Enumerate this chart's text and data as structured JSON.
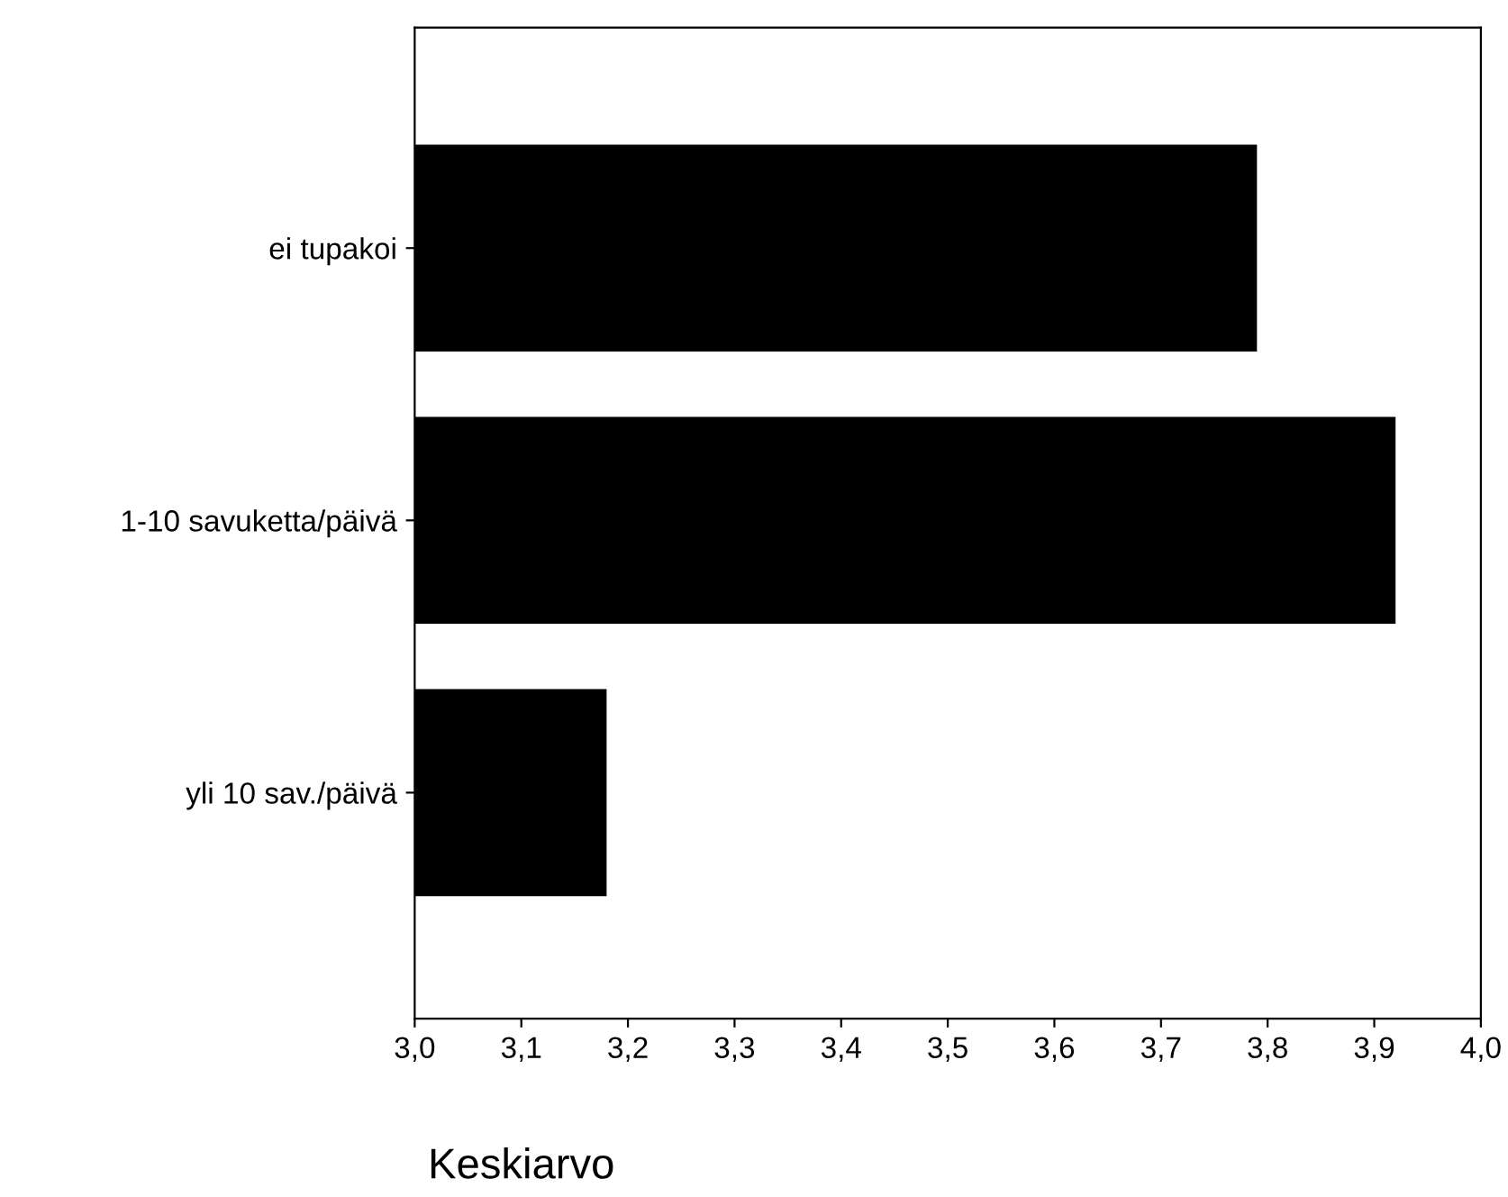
{
  "chart_data": {
    "type": "bar",
    "orientation": "horizontal",
    "xlabel": "Keskiarvo",
    "categories": [
      "ei tupakoi",
      "1-10 savuketta/päivä",
      "yli 10 sav./päivä"
    ],
    "values": [
      3.79,
      3.92,
      3.18
    ],
    "color": "#000000",
    "xlim": [
      3.0,
      4.0
    ],
    "xticks": [
      {
        "value": 3.0,
        "label": "3,0"
      },
      {
        "value": 3.1,
        "label": "3,1"
      },
      {
        "value": 3.2,
        "label": "3,2"
      },
      {
        "value": 3.3,
        "label": "3,3"
      },
      {
        "value": 3.4,
        "label": "3,4"
      },
      {
        "value": 3.5,
        "label": "3,5"
      },
      {
        "value": 3.6,
        "label": "3,6"
      },
      {
        "value": 3.7,
        "label": "3,7"
      },
      {
        "value": 3.8,
        "label": "3,8"
      },
      {
        "value": 3.9,
        "label": "3,9"
      },
      {
        "value": 4.0,
        "label": "4,0"
      }
    ],
    "grid": false,
    "legend": false
  }
}
